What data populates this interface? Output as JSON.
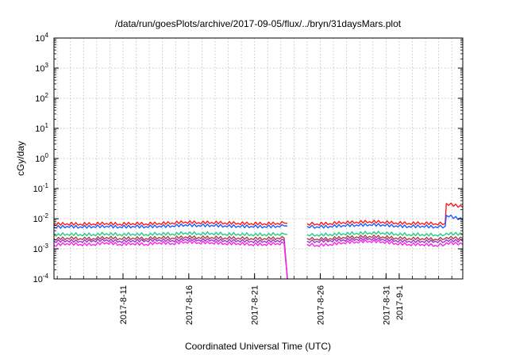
{
  "chart_data": {
    "type": "line",
    "title": "/data/run/goesPlots/archive/2017-09-05/flux/../bryn/31daysMars.plot",
    "xlabel": "Coordinated Universal Time (UTC)",
    "ylabel": "cGy/day",
    "yscale": "log",
    "ylim": [
      0.0001,
      10000
    ],
    "xlim": [
      "2017-08-05T18:00",
      "2017-09-05T20:00"
    ],
    "grid": true,
    "legend": "none",
    "y_ticks": [
      {
        "value": 0.0001,
        "base": "10",
        "exp": "-4"
      },
      {
        "value": 0.001,
        "base": "10",
        "exp": "-3"
      },
      {
        "value": 0.01,
        "base": "10",
        "exp": "-2"
      },
      {
        "value": 0.1,
        "base": "10",
        "exp": "-1"
      },
      {
        "value": 1,
        "base": "10",
        "exp": "0"
      },
      {
        "value": 10,
        "base": "10",
        "exp": "1"
      },
      {
        "value": 100,
        "base": "10",
        "exp": "2"
      },
      {
        "value": 1000,
        "base": "10",
        "exp": "3"
      },
      {
        "value": 10000,
        "base": "10",
        "exp": "4"
      }
    ],
    "x_ticks": [
      {
        "value": "2017-08-11",
        "label": "2017-8-11"
      },
      {
        "value": "2017-08-16",
        "label": "2017-8-16"
      },
      {
        "value": "2017-08-21",
        "label": "2017-8-21"
      },
      {
        "value": "2017-08-26",
        "label": "2017-8-26"
      },
      {
        "value": "2017-08-31",
        "label": "2017-8-31"
      },
      {
        "value": "2017-09-01",
        "label": "2017-9-1"
      }
    ],
    "x": [
      "2017-08-05T18:00",
      "2017-08-06T18:00",
      "2017-08-07T18:00",
      "2017-08-08T18:00",
      "2017-08-09T18:00",
      "2017-08-10T18:00",
      "2017-08-11T18:00",
      "2017-08-12T18:00",
      "2017-08-13T18:00",
      "2017-08-14T18:00",
      "2017-08-15T18:00",
      "2017-08-16T18:00",
      "2017-08-17T18:00",
      "2017-08-18T18:00",
      "2017-08-19T18:00",
      "2017-08-20T18:00",
      "2017-08-21T18:00",
      "2017-08-22T18:00",
      "2017-08-23T06:00",
      "2017-08-23T12:00",
      "2017-08-24T18:00",
      "2017-08-25T00:00",
      "2017-08-25T18:00",
      "2017-08-26T18:00",
      "2017-08-27T18:00",
      "2017-08-28T18:00",
      "2017-08-29T18:00",
      "2017-08-30T18:00",
      "2017-08-31T18:00",
      "2017-09-01T18:00",
      "2017-09-02T18:00",
      "2017-09-03T18:00",
      "2017-09-04T12:00",
      "2017-09-04T14:00",
      "2017-09-05T20:00"
    ],
    "series": [
      {
        "color": "#ff1a1a",
        "values": [
          0.0065,
          0.0068,
          0.0066,
          0.0067,
          0.007,
          0.0066,
          0.0069,
          0.0067,
          0.007,
          0.0072,
          0.0078,
          0.0074,
          0.0075,
          0.0072,
          0.0071,
          0.0069,
          0.0068,
          0.007,
          0.0072,
          0.007,
          null,
          0.0068,
          0.0067,
          0.0069,
          0.0075,
          0.0077,
          0.008,
          0.0078,
          0.0072,
          0.007,
          0.0071,
          0.0068,
          0.007,
          0.032,
          0.024
        ]
      },
      {
        "color": "#1a5cff",
        "values": [
          0.0052,
          0.0056,
          0.0054,
          0.0055,
          0.0057,
          0.0054,
          0.0056,
          0.0055,
          0.0057,
          0.0058,
          0.0063,
          0.006,
          0.0061,
          0.0058,
          0.0057,
          0.0056,
          0.0055,
          0.0057,
          0.0058,
          0.0057,
          null,
          0.0055,
          0.0054,
          0.0056,
          0.006,
          0.0062,
          0.0064,
          0.0063,
          0.0058,
          0.0056,
          0.0057,
          0.0054,
          0.0056,
          0.013,
          0.0095
        ]
      },
      {
        "color": "#22cc88",
        "values": [
          0.0029,
          0.0031,
          0.003,
          0.003,
          0.0032,
          0.003,
          0.0031,
          0.003,
          0.0032,
          0.0031,
          0.0034,
          0.0032,
          0.0033,
          0.0031,
          0.0031,
          0.003,
          0.003,
          0.0031,
          0.0031,
          0.003,
          null,
          0.003,
          0.0029,
          0.003,
          0.0032,
          0.0033,
          0.0034,
          0.0034,
          0.0031,
          0.003,
          0.003,
          0.0029,
          0.003,
          0.0033,
          0.003
        ]
      },
      {
        "color": "#b04040",
        "values": [
          0.0021,
          0.0023,
          0.0022,
          0.0022,
          0.0024,
          0.0022,
          0.0023,
          0.0022,
          0.0024,
          0.0023,
          0.0025,
          0.0024,
          0.0024,
          0.0023,
          0.0023,
          0.0022,
          0.0022,
          0.0023,
          0.0023,
          5e-05,
          null,
          0.0022,
          0.0021,
          0.0022,
          0.0024,
          0.0025,
          0.0026,
          0.0025,
          0.0023,
          0.0022,
          0.0022,
          0.0021,
          0.0022,
          0.0024,
          0.0022
        ]
      },
      {
        "color": "#9933cc",
        "values": [
          0.0018,
          0.0019,
          0.0018,
          0.0019,
          0.002,
          0.0018,
          0.0019,
          0.0019,
          0.002,
          0.0019,
          0.0021,
          0.002,
          0.002,
          0.0019,
          0.0019,
          0.0018,
          0.0018,
          0.0019,
          0.0019,
          5e-05,
          null,
          0.0018,
          0.0018,
          0.0019,
          0.002,
          0.0021,
          0.0022,
          0.0021,
          0.0019,
          0.0018,
          0.0018,
          0.0018,
          0.0018,
          0.002,
          0.0018
        ]
      },
      {
        "color": "#ff22ee",
        "values": [
          0.0013,
          0.0015,
          0.0014,
          0.0014,
          0.0016,
          0.0014,
          0.0015,
          0.0014,
          0.0016,
          0.0015,
          0.0017,
          0.0016,
          0.0016,
          0.0015,
          0.0015,
          0.0014,
          0.0014,
          0.0015,
          0.0015,
          5e-05,
          null,
          0.0014,
          0.0013,
          0.0014,
          0.0016,
          0.0017,
          0.0018,
          0.0017,
          0.0015,
          0.0014,
          0.0014,
          0.0013,
          0.0014,
          0.0016,
          0.0014
        ]
      }
    ]
  }
}
